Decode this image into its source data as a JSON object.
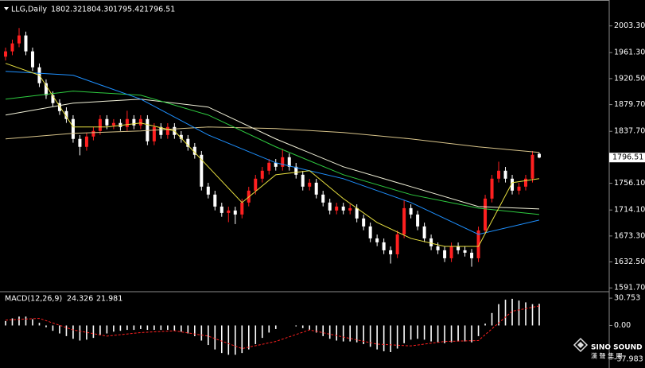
{
  "chart_data": [
    {
      "type": "candlestick",
      "title": "LLG,Daily",
      "header_values": [
        "1802.32",
        "1804.30",
        "1795.42",
        "1796.51"
      ],
      "up_color": "#ff2020",
      "down_color": "#ffffff",
      "open": [
        1955.0,
        1963.3,
        1975.8,
        1988.3,
        1963.3,
        1938.3,
        1913.3,
        1894.5,
        1882.0,
        1869.5,
        1857.0,
        1825.8,
        1813.3,
        1829.5,
        1838.3,
        1857.0,
        1847.0,
        1850.8,
        1844.5,
        1857.0,
        1847.0,
        1857.0,
        1822.0,
        1844.5,
        1832.0,
        1844.5,
        1832.0,
        1825.8,
        1813.3,
        1800.8,
        1750.8,
        1738.3,
        1719.5,
        1709.5,
        1713.3,
        1707.0,
        1725.8,
        1744.5,
        1763.3,
        1775.8,
        1788.3,
        1782.0,
        1797.0,
        1782.0,
        1769.5,
        1750.8,
        1757.0,
        1738.3,
        1725.8,
        1713.3,
        1719.5,
        1713.3,
        1717.0,
        1700.8,
        1688.3,
        1669.5,
        1663.3,
        1650.8,
        1644.5,
        1675.8,
        1717.0,
        1707.0,
        1688.3,
        1669.5,
        1657.0,
        1650.8,
        1638.3,
        1657.0,
        1650.8,
        1647.0,
        1638.3,
        1682.0,
        1732.0,
        1763.3,
        1775.8,
        1763.3,
        1744.5,
        1750.8,
        1763.3,
        1802.32
      ],
      "high": [
        1969.3,
        1981.8,
        2000.0,
        1994.3,
        1969.3,
        1944.3,
        1919.3,
        1900.5,
        1888.0,
        1875.5,
        1863.0,
        1831.8,
        1835.5,
        1844.3,
        1863.0,
        1863.0,
        1856.8,
        1856.8,
        1870.0,
        1863.0,
        1863.0,
        1863.0,
        1850.5,
        1850.5,
        1850.5,
        1850.5,
        1838.0,
        1831.8,
        1819.3,
        1806.8,
        1756.8,
        1744.3,
        1725.5,
        1719.3,
        1719.3,
        1731.8,
        1750.5,
        1769.3,
        1781.8,
        1794.3,
        1794.3,
        1810.0,
        1803.0,
        1788.0,
        1775.5,
        1763.0,
        1763.0,
        1744.3,
        1731.8,
        1725.5,
        1725.5,
        1723.0,
        1723.0,
        1706.8,
        1694.3,
        1675.5,
        1669.3,
        1656.8,
        1681.8,
        1730.0,
        1723.0,
        1713.0,
        1694.3,
        1675.5,
        1663.0,
        1656.8,
        1663.0,
        1663.0,
        1656.8,
        1653.0,
        1688.0,
        1738.0,
        1769.3,
        1790.0,
        1781.8,
        1769.3,
        1756.8,
        1769.3,
        1806.8,
        1804.3
      ],
      "low": [
        1949.0,
        1957.3,
        1969.8,
        1957.3,
        1932.3,
        1907.3,
        1888.5,
        1876.0,
        1863.5,
        1851.0,
        1819.8,
        1800.0,
        1807.3,
        1823.5,
        1832.3,
        1841.0,
        1841.0,
        1838.5,
        1838.5,
        1841.0,
        1841.0,
        1816.0,
        1816.0,
        1826.0,
        1826.0,
        1826.0,
        1819.8,
        1807.3,
        1794.8,
        1744.8,
        1732.3,
        1713.5,
        1703.5,
        1695.0,
        1692.0,
        1701.0,
        1719.8,
        1738.5,
        1757.3,
        1769.8,
        1776.0,
        1776.0,
        1776.0,
        1763.5,
        1744.8,
        1744.8,
        1732.3,
        1719.8,
        1707.3,
        1707.3,
        1707.3,
        1707.3,
        1694.8,
        1682.3,
        1663.5,
        1657.3,
        1644.8,
        1630.0,
        1638.5,
        1669.8,
        1701.0,
        1682.3,
        1663.5,
        1651.0,
        1644.8,
        1632.3,
        1632.3,
        1644.8,
        1641.0,
        1625.0,
        1632.3,
        1676.0,
        1726.0,
        1757.3,
        1757.3,
        1738.5,
        1738.5,
        1744.8,
        1757.3,
        1795.42
      ],
      "close": [
        1963.3,
        1975.8,
        1988.3,
        1963.3,
        1938.3,
        1913.3,
        1894.5,
        1882.0,
        1869.5,
        1857.0,
        1825.8,
        1813.3,
        1829.5,
        1838.3,
        1857.0,
        1847.0,
        1850.8,
        1844.5,
        1857.0,
        1847.0,
        1857.0,
        1822.0,
        1844.5,
        1832.0,
        1844.5,
        1832.0,
        1825.8,
        1813.3,
        1800.8,
        1750.8,
        1738.3,
        1719.5,
        1709.5,
        1713.3,
        1707.0,
        1725.8,
        1744.5,
        1763.3,
        1775.8,
        1788.3,
        1782.0,
        1797.0,
        1782.0,
        1769.5,
        1750.8,
        1757.0,
        1738.3,
        1725.8,
        1713.3,
        1719.5,
        1713.3,
        1717.0,
        1700.8,
        1688.3,
        1669.5,
        1663.3,
        1650.8,
        1644.5,
        1675.8,
        1717.0,
        1707.0,
        1688.3,
        1669.5,
        1657.0,
        1650.8,
        1638.3,
        1657.0,
        1650.8,
        1647.0,
        1638.3,
        1682.0,
        1732.0,
        1763.3,
        1775.8,
        1763.3,
        1744.5,
        1750.8,
        1763.3,
        1800.8,
        1796.51
      ],
      "overlays": [
        {
          "color": "#d8c48a",
          "x": [
            0,
            10,
            20,
            30,
            40,
            50,
            60,
            70,
            79
          ],
          "values": [
            1825.8,
            1834.5,
            1838.3,
            1844.5,
            1842.0,
            1835.8,
            1825.8,
            1813.3,
            1804.5
          ]
        },
        {
          "color": "#f0f0d8",
          "x": [
            0,
            10,
            20,
            30,
            40,
            50,
            60,
            70,
            79
          ],
          "values": [
            1863.3,
            1882.0,
            1888.3,
            1875.8,
            1825.8,
            1782.0,
            1750.8,
            1719.5,
            1715.8
          ]
        },
        {
          "color": "#2ecc40",
          "x": [
            0,
            10,
            20,
            30,
            40,
            50,
            60,
            70,
            79
          ],
          "values": [
            1888.3,
            1900.8,
            1894.5,
            1863.3,
            1813.3,
            1769.5,
            1738.3,
            1717.0,
            1707.0
          ]
        },
        {
          "color": "#1e90ff",
          "x": [
            0,
            10,
            20,
            30,
            40,
            50,
            60,
            70,
            79
          ],
          "values": [
            1932.0,
            1925.8,
            1888.3,
            1832.0,
            1788.3,
            1763.3,
            1725.8,
            1675.8,
            1698.3
          ]
        },
        {
          "color": "#e8e040",
          "x": [
            0,
            5,
            10,
            15,
            20,
            25,
            30,
            35,
            40,
            45,
            50,
            55,
            60,
            65,
            70,
            75,
            79
          ],
          "values": [
            1944.5,
            1925.8,
            1844.5,
            1844.5,
            1850.8,
            1838.3,
            1782.0,
            1725.8,
            1769.5,
            1775.8,
            1732.0,
            1694.5,
            1669.5,
            1657.0,
            1657.0,
            1757.0,
            1763.3
          ]
        }
      ],
      "ylim": [
        1587,
        2039
      ],
      "yticks": [
        {
          "value": 2003.3,
          "label": "2003.30"
        },
        {
          "value": 1961.3,
          "label": "1961.30"
        },
        {
          "value": 1920.5,
          "label": "1920.50"
        },
        {
          "value": 1879.7,
          "label": "1879.70"
        },
        {
          "value": 1837.7,
          "label": "1837.70"
        },
        {
          "value": 1756.1,
          "label": "1756.10"
        },
        {
          "value": 1714.1,
          "label": "1714.10"
        },
        {
          "value": 1673.3,
          "label": "1673.30"
        },
        {
          "value": 1632.5,
          "label": "1632.50"
        },
        {
          "value": 1591.7,
          "label": "1591.70"
        }
      ]
    },
    {
      "type": "macd",
      "title": "MACD(12,26,9)",
      "series": [
        {
          "color": "#ffffff",
          "values": [
            5,
            8,
            10,
            10,
            7,
            3,
            -2,
            -6,
            -9,
            -12,
            -15,
            -17,
            -16,
            -14,
            -11,
            -9,
            -7,
            -6,
            -5,
            -5,
            -4,
            -5,
            -5,
            -5,
            -5,
            -6,
            -7,
            -9,
            -12,
            -17,
            -22,
            -27,
            -31,
            -33,
            -33,
            -31,
            -27,
            -21,
            -14,
            -8,
            -4,
            0,
            0,
            -1,
            -3,
            -5,
            -8,
            -12,
            -15,
            -17,
            -18,
            -18,
            -19,
            -21,
            -24,
            -27,
            -29,
            -30,
            -26,
            -20,
            -16,
            -15,
            -16,
            -18,
            -19,
            -20,
            -19,
            -18,
            -18,
            -19,
            -12,
            2,
            14,
            24,
            29,
            30,
            28,
            26,
            24,
            24.326
          ]
        },
        {
          "color": "#ff2020",
          "x": [
            0,
            5,
            10,
            15,
            20,
            25,
            30,
            35,
            40,
            45,
            50,
            55,
            60,
            65,
            70,
            75,
            79
          ],
          "values": [
            6,
            8,
            -5,
            -12,
            -8,
            -6,
            -12,
            -26,
            -18,
            -5,
            -13,
            -21,
            -23,
            -18,
            -17,
            16,
            21.981
          ]
        }
      ],
      "ylim": [
        -45.2,
        37.1
      ],
      "yticks": [
        30.753,
        {
          "value": 0,
          "label": "0.00"
        },
        -37.983
      ]
    }
  ],
  "watermark": {
    "brand": "SINO SOUND",
    "subtitle": "漢 聲 集 團"
  }
}
